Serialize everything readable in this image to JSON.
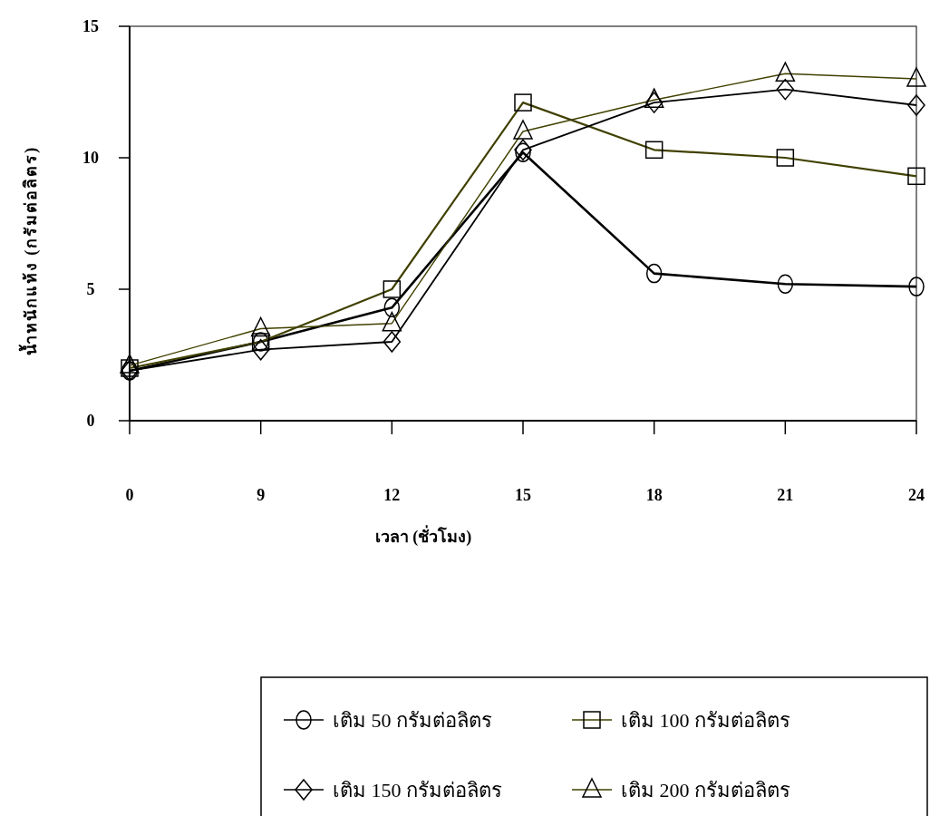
{
  "chart_data": {
    "type": "line",
    "xlabel": "เวลา (ชั่วโมง)",
    "ylabel": "น้ำหนักแห้ง (กรัมต่อลิตร)",
    "categories": [
      "0",
      "9",
      "12",
      "15",
      "18",
      "21",
      "24"
    ],
    "ylim": [
      0,
      15
    ],
    "yticks": [
      0,
      5,
      10,
      15
    ],
    "grid": false,
    "legend": "bottom",
    "line_style": "solid",
    "series": [
      {
        "name": "เติม 50 กรัมต่อลิตร",
        "color": "#000000",
        "marker": "circle",
        "values": [
          1.9,
          3.0,
          4.3,
          10.2,
          5.6,
          5.2,
          5.1
        ]
      },
      {
        "name": "เติม 100 กรัมต่อลิตร",
        "color": "#404000",
        "marker": "square",
        "values": [
          2.0,
          3.0,
          5.0,
          12.1,
          10.3,
          10.0,
          9.3
        ]
      },
      {
        "name": "เติม 150 กรัมต่อลิตร",
        "color": "#000000",
        "marker": "diamond",
        "values": [
          1.9,
          2.7,
          3.0,
          10.3,
          12.1,
          12.6,
          12.0
        ]
      },
      {
        "name": "เติม 200 กรัมต่อลิตร",
        "color": "#404000",
        "marker": "triangle",
        "values": [
          2.1,
          3.5,
          3.7,
          11.0,
          12.2,
          13.2,
          13.0
        ]
      }
    ]
  }
}
